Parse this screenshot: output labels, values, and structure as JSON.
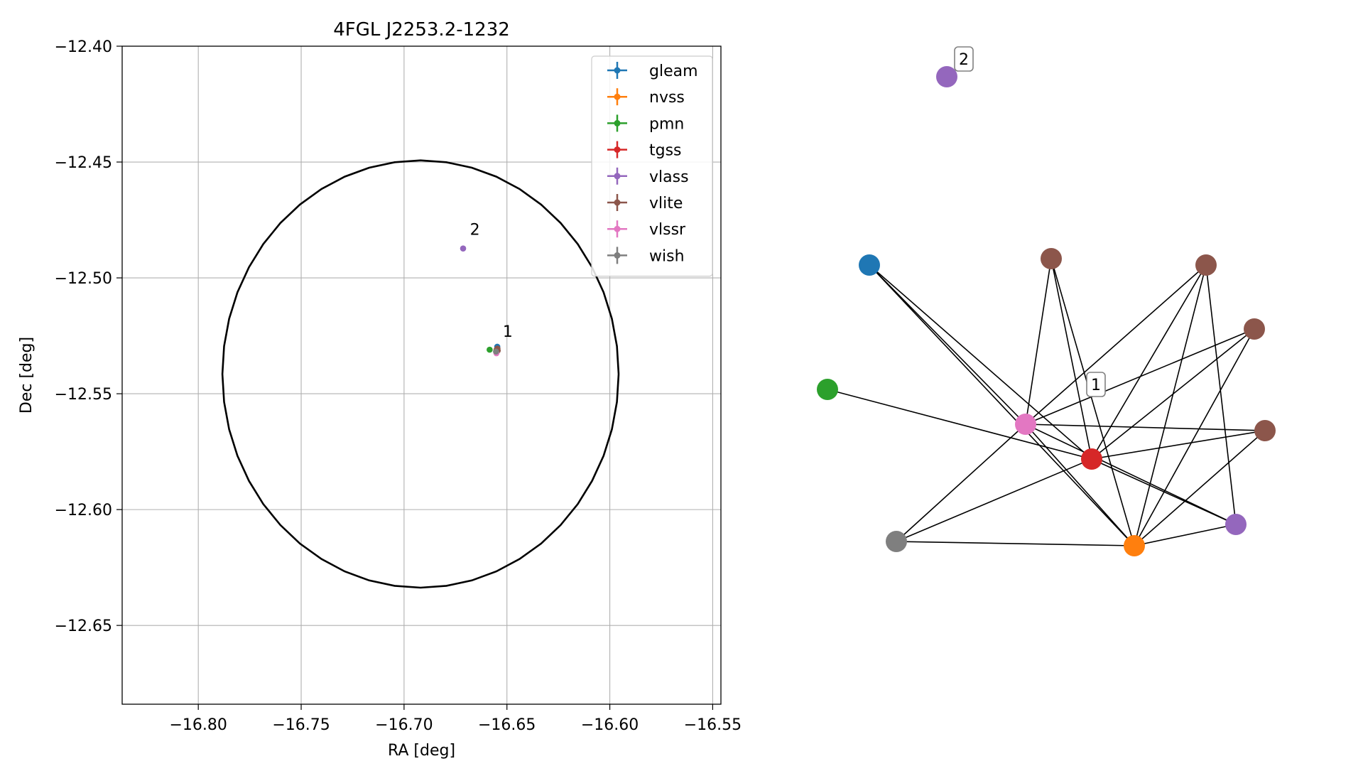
{
  "chart_data": [
    {
      "type": "scatter",
      "title": "4FGL J2253.2-1232",
      "xlabel": "RA [deg]",
      "ylabel": "Dec [deg]",
      "xlim": [
        -16.837,
        -16.546
      ],
      "ylim": [
        -12.684,
        -12.4
      ],
      "x_ticks": [
        -16.8,
        -16.75,
        -16.7,
        -16.65,
        -16.6,
        -16.55
      ],
      "x_tick_labels": [
        "−16.80",
        "−16.75",
        "−16.70",
        "−16.65",
        "−16.60",
        "−16.55"
      ],
      "y_ticks": [
        -12.4,
        -12.45,
        -12.5,
        -12.55,
        -12.6,
        -12.65
      ],
      "y_tick_labels": [
        "−12.40",
        "−12.45",
        "−12.50",
        "−12.55",
        "−12.60",
        "−12.65"
      ],
      "grid": true,
      "legend_position": "top-right",
      "uncertainty_ellipse": {
        "center": [
          -16.692,
          -12.5415
        ],
        "ra_radius": 0.0963,
        "dec_radius": 0.0922,
        "color": "#000000"
      },
      "series": [
        {
          "name": "gleam",
          "color": "#1f77b4",
          "points": [
            [
              -16.6547,
              -12.5297
            ]
          ]
        },
        {
          "name": "nvss",
          "color": "#ff7f0e",
          "points": [
            [
              -16.6547,
              -12.5312
            ]
          ]
        },
        {
          "name": "pmn",
          "color": "#2ca02c",
          "points": [
            [
              -16.6584,
              -12.531
            ]
          ]
        },
        {
          "name": "tgss",
          "color": "#d62728",
          "points": [
            [
              -16.6551,
              -12.5312
            ]
          ]
        },
        {
          "name": "vlass",
          "color": "#9467bd",
          "points": [
            [
              -16.6713,
              -12.4873
            ],
            [
              -16.6547,
              -12.531
            ]
          ]
        },
        {
          "name": "vlite",
          "color": "#8c564b",
          "points": [
            [
              -16.6549,
              -12.5308
            ],
            [
              -16.6545,
              -12.5314
            ],
            [
              -16.655,
              -12.5316
            ],
            [
              -16.6546,
              -12.5305
            ]
          ]
        },
        {
          "name": "vlssr",
          "color": "#e377c2",
          "points": [
            [
              -16.6551,
              -12.5325
            ]
          ]
        },
        {
          "name": "wish",
          "color": "#7f7f7f",
          "points": [
            [
              -16.6553,
              -12.5318
            ]
          ]
        }
      ],
      "annotations": [
        {
          "text": "1",
          "x": -16.652,
          "y": -12.5255
        },
        {
          "text": "2",
          "x": -16.668,
          "y": -12.4815
        }
      ]
    },
    {
      "type": "network",
      "nodes": [
        {
          "id": "gleam",
          "color": "#1f77b4"
        },
        {
          "id": "pmn",
          "color": "#2ca02c"
        },
        {
          "id": "wish",
          "color": "#7f7f7f"
        },
        {
          "id": "vlssr",
          "color": "#e377c2"
        },
        {
          "id": "tgss",
          "color": "#d62728"
        },
        {
          "id": "nvss",
          "color": "#ff7f0e"
        },
        {
          "id": "vlass_1",
          "color": "#9467bd"
        },
        {
          "id": "vlite_a",
          "color": "#8c564b"
        },
        {
          "id": "vlite_b",
          "color": "#8c564b"
        },
        {
          "id": "vlite_c",
          "color": "#8c564b"
        },
        {
          "id": "vlite_d",
          "color": "#8c564b"
        },
        {
          "id": "vlass_2",
          "color": "#9467bd"
        }
      ],
      "edges": [
        [
          "gleam",
          "vlssr"
        ],
        [
          "gleam",
          "tgss"
        ],
        [
          "gleam",
          "nvss"
        ],
        [
          "pmn",
          "tgss"
        ],
        [
          "wish",
          "vlssr"
        ],
        [
          "wish",
          "tgss"
        ],
        [
          "wish",
          "nvss"
        ],
        [
          "vlssr",
          "vlite_a"
        ],
        [
          "vlssr",
          "vlite_b"
        ],
        [
          "vlssr",
          "vlite_c"
        ],
        [
          "vlssr",
          "vlite_d"
        ],
        [
          "vlssr",
          "vlass_1"
        ],
        [
          "vlssr",
          "nvss"
        ],
        [
          "tgss",
          "vlite_a"
        ],
        [
          "tgss",
          "vlite_b"
        ],
        [
          "tgss",
          "vlite_c"
        ],
        [
          "tgss",
          "vlite_d"
        ],
        [
          "tgss",
          "vlass_1"
        ],
        [
          "nvss",
          "vlite_a"
        ],
        [
          "nvss",
          "vlite_b"
        ],
        [
          "nvss",
          "vlite_c"
        ],
        [
          "nvss",
          "vlite_d"
        ],
        [
          "nvss",
          "vlass_1"
        ],
        [
          "vlass_1",
          "vlite_b"
        ]
      ],
      "labels": [
        {
          "text": "1"
        },
        {
          "text": "2"
        }
      ]
    }
  ]
}
